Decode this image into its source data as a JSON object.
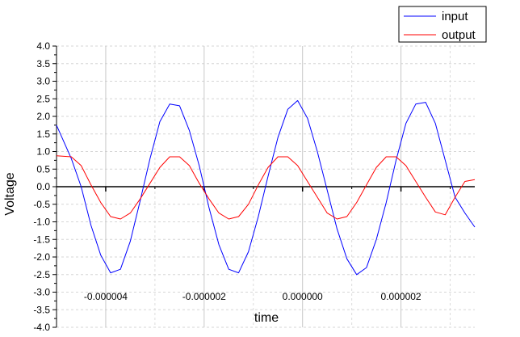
{
  "chart_data": {
    "type": "line",
    "title": "",
    "xlabel": "time",
    "ylabel": "Voltage",
    "xlim": [
      -5e-06,
      3.5e-06
    ],
    "ylim": [
      -4.0,
      4.0
    ],
    "x_ticks": [
      -4e-06,
      -2e-06,
      0.0,
      2e-06
    ],
    "x_tick_labels": [
      "-0.000004",
      "-0.000002",
      "0.000000",
      "0.000002"
    ],
    "y_ticks": [
      4.0,
      3.5,
      3.0,
      2.5,
      2.0,
      1.5,
      1.0,
      0.5,
      0.0,
      -0.5,
      -1.0,
      -1.5,
      -2.0,
      -2.5,
      -3.0,
      -3.5,
      -4.0
    ],
    "y_tick_labels": [
      "4.0",
      "3.5",
      "3.0",
      "2.5",
      "2.0",
      "1.5",
      "1.0",
      "0.5",
      "0.0",
      "-0.5",
      "-1.0",
      "-1.5",
      "-2.0",
      "-2.5",
      "-3.0",
      "-3.5",
      "-4.0"
    ],
    "grid": true,
    "legend_position": "top-right",
    "series": [
      {
        "name": "input",
        "color": "#0000ff",
        "x": [
          -5e-06,
          -4.7e-06,
          -4.5e-06,
          -4.3e-06,
          -4.1e-06,
          -3.9e-06,
          -3.7e-06,
          -3.5e-06,
          -3.3e-06,
          -3.1e-06,
          -2.9e-06,
          -2.7e-06,
          -2.5e-06,
          -2.3e-06,
          -2.1e-06,
          -1.9e-06,
          -1.7e-06,
          -1.5e-06,
          -1.3e-06,
          -1.1e-06,
          -9e-07,
          -7e-07,
          -5e-07,
          -3e-07,
          -1e-07,
          1e-07,
          3e-07,
          5e-07,
          7e-07,
          9e-07,
          1.1e-06,
          1.3e-06,
          1.5e-06,
          1.7e-06,
          1.9e-06,
          2.1e-06,
          2.3e-06,
          2.5e-06,
          2.7e-06,
          2.9e-06,
          3.1e-06,
          3.3e-06,
          3.5e-06
        ],
        "y": [
          1.75,
          0.8,
          0.0,
          -1.1,
          -1.95,
          -2.45,
          -2.35,
          -1.55,
          -0.4,
          0.8,
          1.85,
          2.35,
          2.3,
          1.6,
          0.6,
          -0.6,
          -1.65,
          -2.35,
          -2.45,
          -1.85,
          -0.85,
          0.3,
          1.4,
          2.2,
          2.45,
          1.95,
          1.0,
          -0.1,
          -1.2,
          -2.05,
          -2.5,
          -2.3,
          -1.5,
          -0.45,
          0.75,
          1.8,
          2.35,
          2.4,
          1.8,
          0.75,
          -0.3,
          -0.75,
          -1.15
        ]
      },
      {
        "name": "output",
        "color": "#ff0000",
        "x": [
          -5e-06,
          -4.7e-06,
          -4.5e-06,
          -4.3e-06,
          -4.1e-06,
          -3.9e-06,
          -3.7e-06,
          -3.5e-06,
          -3.3e-06,
          -3.1e-06,
          -2.9e-06,
          -2.7e-06,
          -2.5e-06,
          -2.3e-06,
          -2.1e-06,
          -1.9e-06,
          -1.7e-06,
          -1.5e-06,
          -1.3e-06,
          -1.1e-06,
          -9e-07,
          -7e-07,
          -5e-07,
          -3e-07,
          -1e-07,
          1e-07,
          3e-07,
          5e-07,
          7e-07,
          9e-07,
          1.1e-06,
          1.3e-06,
          1.5e-06,
          1.7e-06,
          1.9e-06,
          2.1e-06,
          2.3e-06,
          2.5e-06,
          2.7e-06,
          2.9e-06,
          3.1e-06,
          3.3e-06,
          3.5e-06
        ],
        "y": [
          0.88,
          0.85,
          0.6,
          0.05,
          -0.45,
          -0.85,
          -0.92,
          -0.75,
          -0.35,
          0.1,
          0.55,
          0.85,
          0.85,
          0.6,
          0.1,
          -0.35,
          -0.75,
          -0.92,
          -0.85,
          -0.5,
          0.05,
          0.55,
          0.85,
          0.85,
          0.6,
          0.15,
          -0.3,
          -0.75,
          -0.92,
          -0.85,
          -0.45,
          0.05,
          0.55,
          0.85,
          0.85,
          0.6,
          0.15,
          -0.3,
          -0.72,
          -0.8,
          -0.3,
          0.15,
          0.2
        ]
      }
    ]
  }
}
